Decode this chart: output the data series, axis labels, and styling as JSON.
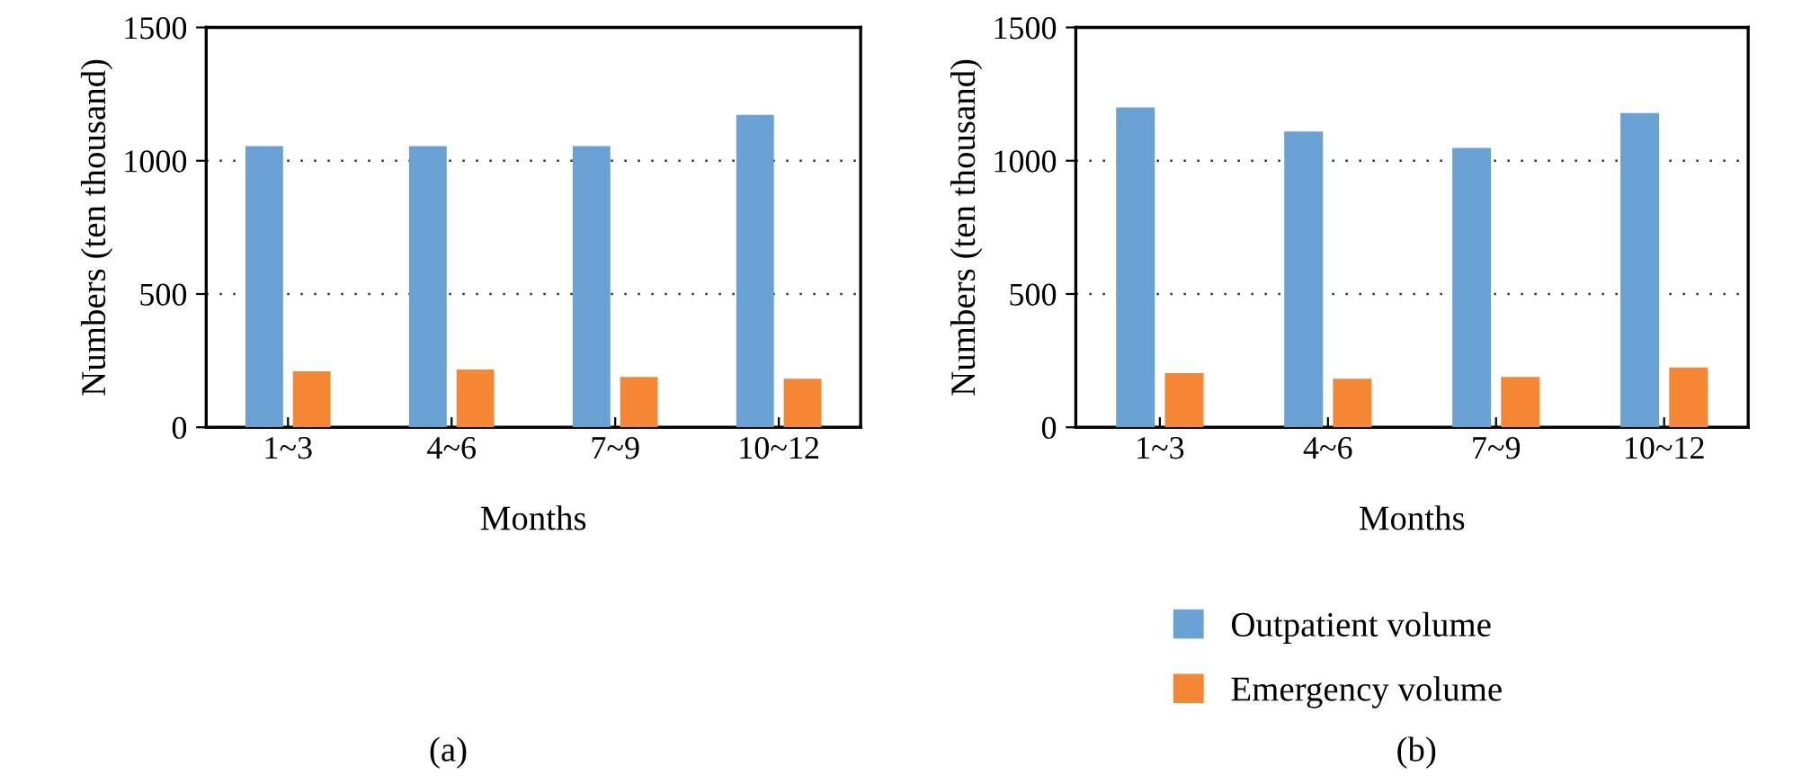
{
  "chart_data": [
    {
      "type": "bar",
      "xlabel": "Months",
      "ylabel": "Numbers (ten thousand)",
      "categories": [
        "1~3",
        "4~6",
        "7~9",
        "10~12"
      ],
      "series": [
        {
          "color": "#6aa1d4",
          "values": [
            1055,
            1055,
            1055,
            1172
          ]
        },
        {
          "color": "#f58634",
          "values": [
            210,
            217,
            189,
            182
          ]
        }
      ],
      "ylim": [
        0,
        1500
      ],
      "yticks": [
        0,
        500,
        1000,
        1500
      ],
      "grid": "y",
      "annotations": [
        "(a)"
      ]
    },
    {
      "type": "bar",
      "xlabel": "Months",
      "ylabel": "Numbers (ten thousand)",
      "categories": [
        "1~3",
        "4~6",
        "7~9",
        "10~12"
      ],
      "series": [
        {
          "name": "Outpatient volume",
          "color": "#6aa1d4",
          "values": [
            1200,
            1110,
            1048,
            1179
          ]
        },
        {
          "name": "Emergency volume",
          "color": "#f58634",
          "values": [
            203,
            182,
            189,
            224
          ]
        }
      ],
      "ylim": [
        0,
        1500
      ],
      "yticks": [
        0,
        500,
        1000,
        1500
      ],
      "grid": "y",
      "legend": "bottom",
      "annotations": [
        "(b)"
      ]
    }
  ]
}
